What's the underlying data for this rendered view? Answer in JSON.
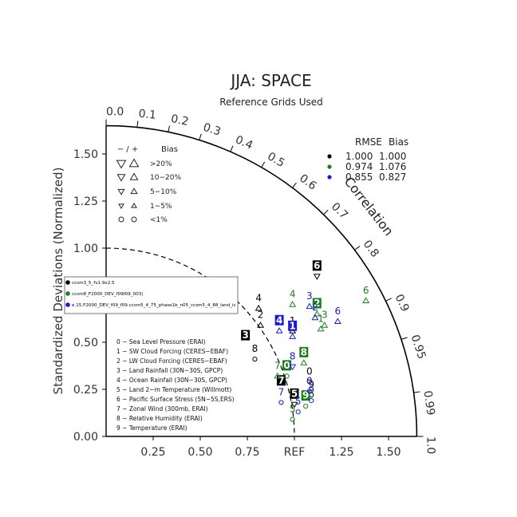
{
  "chart_data": {
    "type": "taylor",
    "title": "JJA: SPACE",
    "subtitle": "Reference Grids Used",
    "ylabel": "Standardized Deviations (Normalized)",
    "xlabel": "",
    "arc_label": "Correlation",
    "ref_label": "REF",
    "std_range": [
      0,
      1.65
    ],
    "std_ticks": [
      "0.00",
      "0.25",
      "0.50",
      "0.75",
      "1.00",
      "1.25",
      "1.50"
    ],
    "x_tick_labels": [
      "0.25",
      "0.50",
      "0.75",
      "REF",
      "1.25",
      "1.50"
    ],
    "correlation_ticks": [
      "0.0",
      "0.1",
      "0.2",
      "0.3",
      "0.4",
      "0.5",
      "0.6",
      "0.7",
      "0.8",
      "0.9",
      "0.95",
      "0.99",
      "1.0"
    ],
    "ref_circle_radius": 1.0,
    "bias_legend": {
      "header_sign": "− / +",
      "header_label": "Bias",
      "rows": [
        ">20%",
        "10−20%",
        "5−10%",
        "1−5%",
        "<1%"
      ]
    },
    "summary_legend": {
      "headers": [
        "RMSE",
        "Bias"
      ],
      "rows": [
        {
          "color": "#000000",
          "rmse": "1.000",
          "bias": "1.000"
        },
        {
          "color": "#1a7f1a",
          "rmse": "0.974",
          "bias": "1.076"
        },
        {
          "color": "#1a1ad6",
          "rmse": "0.855",
          "bias": "0.827"
        }
      ]
    },
    "case_legend": [
      {
        "color": "#000000",
        "label": "ccsm3_5_fv1.9x2.5"
      },
      {
        "color": "#1a7f1a",
        "label": "ccsm8_F2000_DEV_f09f09_003|"
      },
      {
        "color": "#1a1ad6",
        "label": "e.15.F2000_DEV_f09_f09.ccsm5_4_75_phase1b_n05_ccsm5_4_88_land_ic"
      }
    ],
    "variable_legend": [
      "0 − Sea Level Pressure (ERAI)",
      "1 − SW Cloud Forcing (CERES−EBAF)",
      "2 − LW Cloud Forcing (CERES−EBAF)",
      "3 − Land Rainfall (30N−30S, GPCP)",
      "4 − Ocean Rainfall (30N−30S, GPCP)",
      "5 − Land 2−m Temperature (Willmott)",
      "6 − Pacific Surface Stress (5N−5S,ERS)",
      "7 − Zonal Wind (300mb, ERAI)",
      "8 − Relative Humidity (ERAI)",
      "9 − Temperature (ERAI)"
    ],
    "series": [
      {
        "name": "ccsm3_5_fv1.9x2.5",
        "color": "#000000",
        "points": [
          {
            "label": "0",
            "x": 1.08,
            "y": 0.32,
            "boxed": false,
            "marker": "circle"
          },
          {
            "label": "1",
            "x": 0.99,
            "y": 0.59,
            "boxed": false,
            "marker": "tri-up"
          },
          {
            "label": "2",
            "x": 0.82,
            "y": 0.62,
            "boxed": false,
            "marker": "tri-up"
          },
          {
            "label": "3",
            "x": 0.74,
            "y": 0.51,
            "boxed": true,
            "marker": "none"
          },
          {
            "label": "4",
            "x": 0.81,
            "y": 0.71,
            "boxed": false,
            "marker": "tri-up"
          },
          {
            "label": "5",
            "x": 1.0,
            "y": 0.2,
            "boxed": true,
            "marker": "tri-down"
          },
          {
            "label": "6",
            "x": 1.12,
            "y": 0.88,
            "boxed": true,
            "marker": "tri-down"
          },
          {
            "label": "7",
            "x": 0.93,
            "y": 0.27,
            "boxed": true,
            "marker": "none"
          },
          {
            "label": "8",
            "x": 0.79,
            "y": 0.44,
            "boxed": false,
            "marker": "circle"
          },
          {
            "label": "9",
            "x": 1.09,
            "y": 0.25,
            "boxed": false,
            "marker": "circle"
          }
        ]
      },
      {
        "name": "ccsm8_F2000_DEV_f09f09_003|",
        "color": "#1a7f1a",
        "points": [
          {
            "label": "0",
            "x": 0.96,
            "y": 0.35,
            "boxed": true,
            "marker": "circle"
          },
          {
            "label": "1",
            "x": 1.14,
            "y": 0.6,
            "boxed": false,
            "marker": "tri-up"
          },
          {
            "label": "2",
            "x": 1.12,
            "y": 0.68,
            "boxed": true,
            "marker": "tri-up"
          },
          {
            "label": "3",
            "x": 1.16,
            "y": 0.62,
            "boxed": false,
            "marker": "tri-up"
          },
          {
            "label": "4",
            "x": 0.99,
            "y": 0.73,
            "boxed": false,
            "marker": "tri-up"
          },
          {
            "label": "5",
            "x": 0.99,
            "y": 0.12,
            "boxed": false,
            "marker": "circle"
          },
          {
            "label": "6",
            "x": 1.38,
            "y": 0.75,
            "boxed": false,
            "marker": "tri-up"
          },
          {
            "label": "7",
            "x": 0.91,
            "y": 0.35,
            "boxed": false,
            "marker": "tri-up"
          },
          {
            "label": "8",
            "x": 1.05,
            "y": 0.42,
            "boxed": true,
            "marker": "tri-up"
          },
          {
            "label": "9",
            "x": 1.06,
            "y": 0.19,
            "boxed": true,
            "marker": "circle"
          }
        ]
      },
      {
        "name": "e.15.F2000_DEV_f09_f09.ccsm5_4_75_phase1b_n05_ccsm5_4_88_land_ic",
        "color": "#1a1ad6",
        "points": [
          {
            "label": "0",
            "x": 1.08,
            "y": 0.27,
            "boxed": false,
            "marker": "circle"
          },
          {
            "label": "1",
            "x": 0.99,
            "y": 0.56,
            "boxed": true,
            "marker": "tri-up"
          },
          {
            "label": "2",
            "x": 1.11,
            "y": 0.66,
            "boxed": false,
            "marker": "tri-up"
          },
          {
            "label": "3",
            "x": 1.08,
            "y": 0.72,
            "boxed": false,
            "marker": "tri-up"
          },
          {
            "label": "4",
            "x": 0.92,
            "y": 0.59,
            "boxed": true,
            "marker": "tri-up"
          },
          {
            "label": "5",
            "x": 1.02,
            "y": 0.16,
            "boxed": false,
            "marker": "circle"
          },
          {
            "label": "6",
            "x": 1.23,
            "y": 0.64,
            "boxed": false,
            "marker": "tri-up"
          },
          {
            "label": "7",
            "x": 0.93,
            "y": 0.21,
            "boxed": false,
            "marker": "circle"
          },
          {
            "label": "8",
            "x": 0.99,
            "y": 0.4,
            "boxed": false,
            "marker": "tri-down"
          },
          {
            "label": "9",
            "x": 1.09,
            "y": 0.22,
            "boxed": false,
            "marker": "circle"
          }
        ]
      }
    ]
  }
}
